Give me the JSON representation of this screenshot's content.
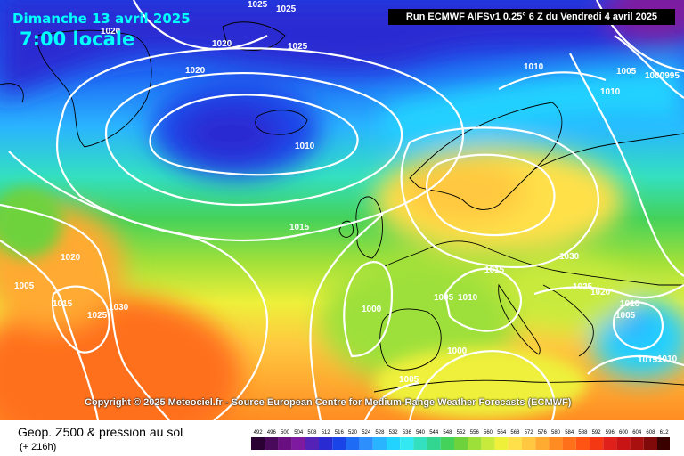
{
  "header": {
    "date": "Dimanche 13 avril 2025",
    "hour": "7:00 locale",
    "run": "Run ECMWF AIFSv1 0.25° 6 Z du Vendredi 4 avril 2025"
  },
  "copyright": "Copyright © 2025 Meteociel.fr - Source European Centre for Medium-Range Weather Forecasts (ECMWF)",
  "legend": {
    "title": "Geop. Z500 & pression au sol",
    "subtitle": "(+ 216h)",
    "ticks": [
      "492",
      "496",
      "500",
      "504",
      "508",
      "512",
      "516",
      "520",
      "524",
      "528",
      "532",
      "536",
      "540",
      "544",
      "548",
      "552",
      "556",
      "560",
      "564",
      "568",
      "572",
      "576",
      "580",
      "584",
      "588",
      "592",
      "596",
      "600",
      "604",
      "608",
      "612"
    ],
    "colors": [
      "#2b0033",
      "#4a0a5c",
      "#6a0f82",
      "#7d1aa0",
      "#5522b8",
      "#2a2ad2",
      "#1a44e8",
      "#1e6cf5",
      "#2c8ffb",
      "#2ab3ff",
      "#22d2ff",
      "#33e8f0",
      "#33e0c0",
      "#33d690",
      "#44d25a",
      "#6ed23c",
      "#9ee03a",
      "#c8ea3c",
      "#eef03a",
      "#ffe04a",
      "#ffc840",
      "#ffaa30",
      "#ff8c22",
      "#ff701a",
      "#ff5414",
      "#f53814",
      "#e0201a",
      "#c81414",
      "#a80f0f",
      "#800a0a",
      "#3a0000"
    ]
  },
  "isobars": [
    {
      "label": "1025"
    },
    {
      "label": "1025"
    },
    {
      "label": "1020"
    },
    {
      "label": "1020"
    },
    {
      "label": "1025"
    },
    {
      "label": "1020"
    },
    {
      "label": "1010"
    },
    {
      "label": "1010"
    },
    {
      "label": "1005"
    },
    {
      "label": "1000995"
    },
    {
      "label": "1010"
    },
    {
      "label": "1015"
    },
    {
      "label": "1020"
    },
    {
      "label": "1005"
    },
    {
      "label": "1015"
    },
    {
      "label": "1025"
    },
    {
      "label": "1030"
    },
    {
      "label": "1000"
    },
    {
      "label": "1005"
    },
    {
      "label": "1010"
    },
    {
      "label": "1015"
    },
    {
      "label": "1030"
    },
    {
      "label": "1025"
    },
    {
      "label": "1020"
    },
    {
      "label": "1010"
    },
    {
      "label": "1005"
    },
    {
      "label": "1015"
    },
    {
      "label": "1010"
    },
    {
      "label": "1000"
    },
    {
      "label": "1005"
    }
  ]
}
